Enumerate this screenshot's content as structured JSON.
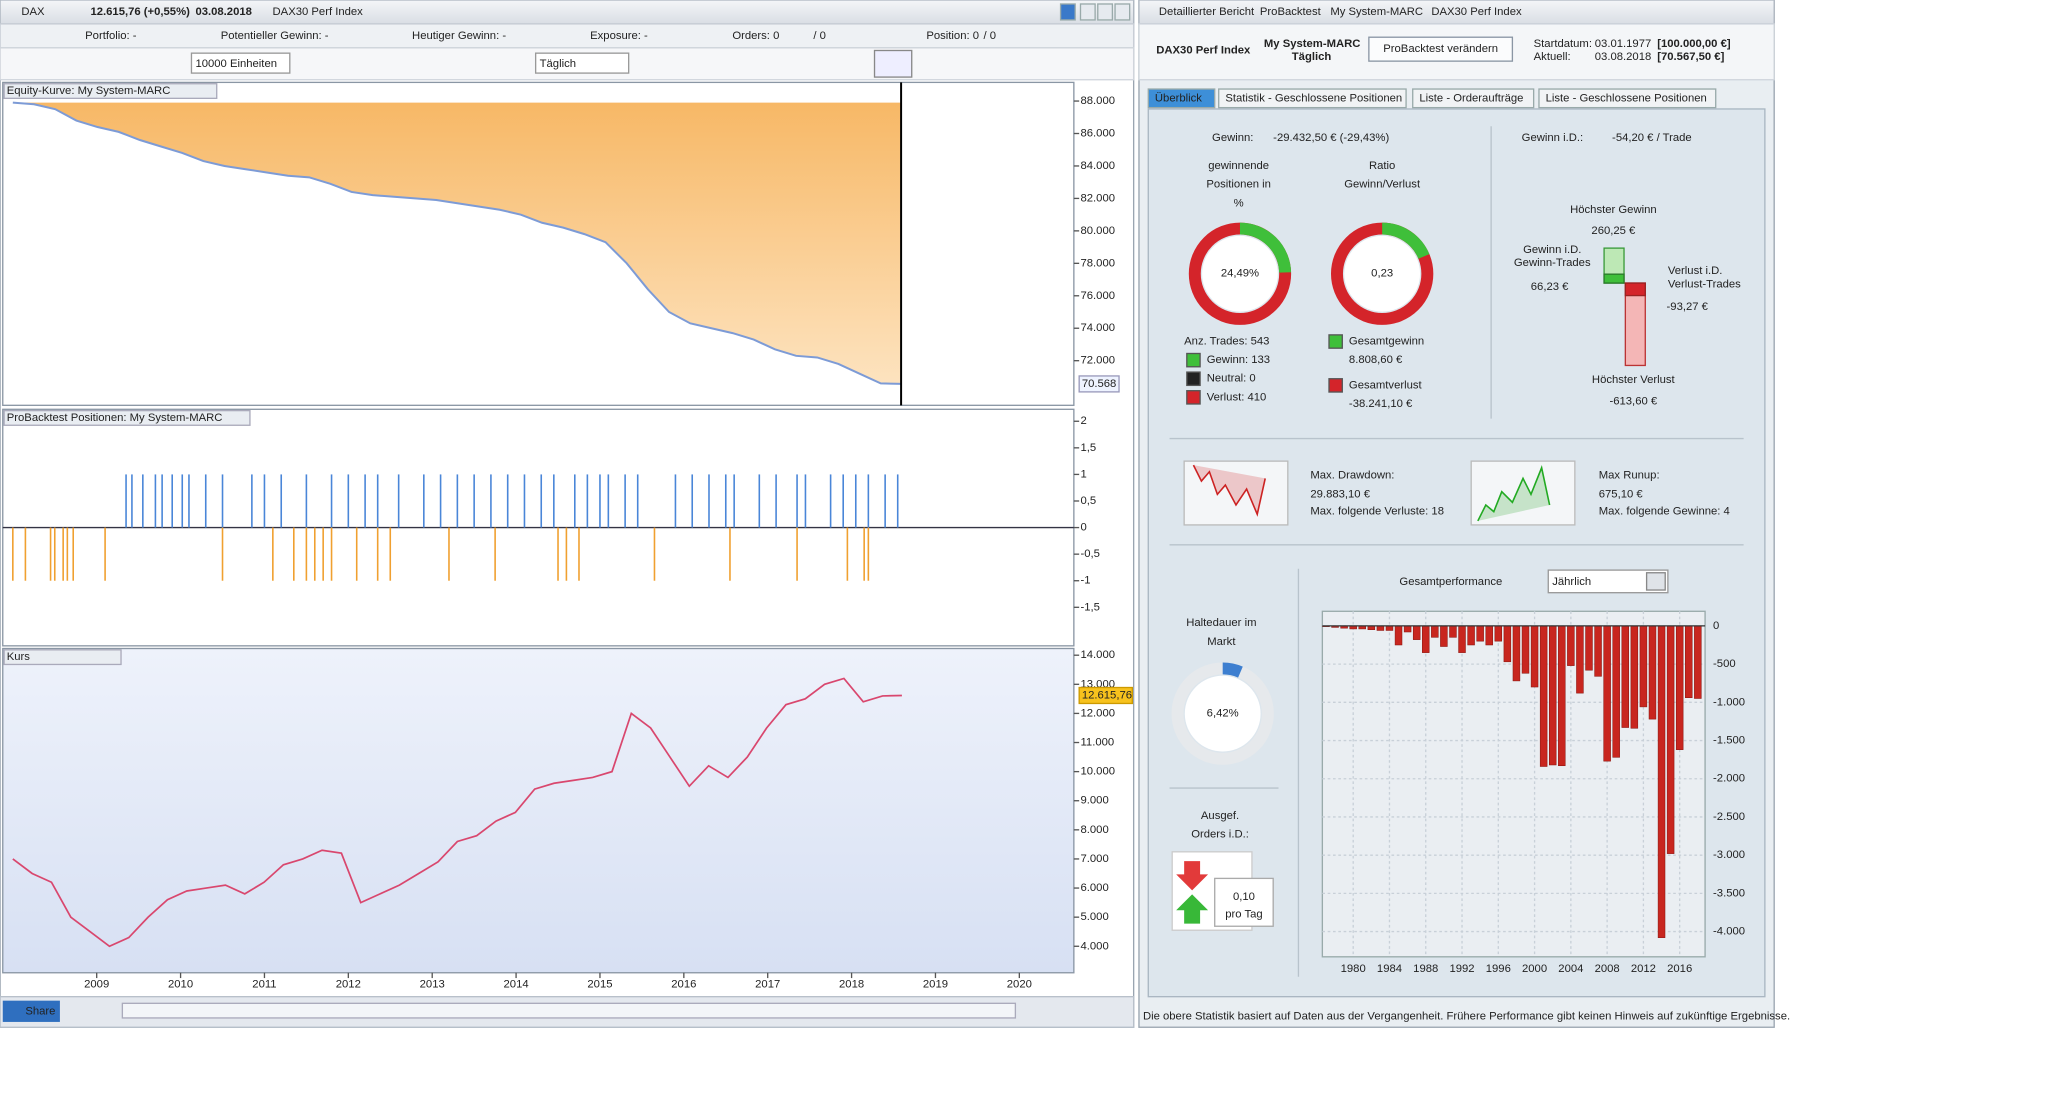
{
  "left": {
    "symbol": "DAX",
    "quote": "12.615,76 (+0,55%)",
    "date": "03.08.2018",
    "instrument": "DAX30 Perf Index",
    "toolbar": [
      "Portfolio: -",
      "Potentieller Gewinn: -",
      "Heutiger Gewinn: -",
      "Exposure: -",
      "Orders: 0",
      "/ 0",
      "Position: 0",
      "/ 0"
    ],
    "size_select": "10000 Einheiten",
    "period_select": "Täglich",
    "xlim": [
      2007.88,
      2020.65
    ],
    "xticks": [
      2009,
      2010,
      2011,
      2012,
      2013,
      2014,
      2015,
      2016,
      2017,
      2018,
      2019,
      2020
    ],
    "equity": {
      "title": "Equity-Kurve: My System-MARC",
      "ylim": [
        69250,
        89150
      ],
      "yticks": [
        {
          "value": 88000,
          "label": "88.000"
        },
        {
          "value": 86000,
          "label": "86.000"
        },
        {
          "value": 84000,
          "label": "84.000"
        },
        {
          "value": 82000,
          "label": "82.000"
        },
        {
          "value": 80000,
          "label": "80.000"
        },
        {
          "value": 78000,
          "label": "78.000"
        },
        {
          "value": 76000,
          "label": "76.000"
        },
        {
          "value": 74000,
          "label": "74.000"
        },
        {
          "value": 72000,
          "label": "72.000"
        }
      ],
      "values": [
        87900,
        87800,
        87500,
        86800,
        86400,
        86100,
        85600,
        85200,
        84800,
        84300,
        84000,
        83800,
        83600,
        83400,
        83300,
        82900,
        82400,
        82200,
        82100,
        82000,
        81900,
        81700,
        81500,
        81300,
        81000,
        80500,
        80200,
        79800,
        79300,
        78000,
        76400,
        75000,
        74300,
        74000,
        73700,
        73300,
        72700,
        72300,
        72200,
        71800,
        71200,
        70600,
        70568
      ],
      "last": {
        "value": 70568,
        "label": "70.568"
      }
    },
    "positions": {
      "title": "ProBacktest Positionen: My System-MARC",
      "ylim": [
        -2.225,
        2.225
      ],
      "yticks": [
        2,
        {
          "value": 1.5,
          "label": "1,5"
        },
        1,
        {
          "value": 0.5,
          "label": "0,5"
        },
        0,
        {
          "value": -0.5,
          "label": "-0,5"
        },
        -1,
        {
          "value": -1.5,
          "label": "-1,5"
        }
      ],
      "long": 1,
      "short": -1,
      "long_x": [
        2009.35,
        2009.42,
        2009.55,
        2009.7,
        2009.78,
        2009.9,
        2010.02,
        2010.1,
        2010.3,
        2010.5,
        2010.85,
        2011.0,
        2011.2,
        2011.5,
        2011.8,
        2012.0,
        2012.2,
        2012.35,
        2012.6,
        2012.9,
        2013.1,
        2013.3,
        2013.5,
        2013.7,
        2013.9,
        2014.1,
        2014.3,
        2014.45,
        2014.7,
        2014.85,
        2015.0,
        2015.1,
        2015.3,
        2015.45,
        2015.9,
        2016.1,
        2016.3,
        2016.5,
        2016.6,
        2016.9,
        2017.1,
        2017.35,
        2017.45,
        2017.75,
        2017.9,
        2018.05,
        2018.2,
        2018.4,
        2018.55
      ],
      "short_x": [
        2008.0,
        2008.15,
        2008.45,
        2008.5,
        2008.6,
        2008.65,
        2008.72,
        2009.1,
        2010.5,
        2011.1,
        2011.35,
        2011.5,
        2011.6,
        2011.7,
        2011.8,
        2012.1,
        2012.35,
        2012.5,
        2013.2,
        2013.75,
        2014.5,
        2014.6,
        2014.75,
        2015.65,
        2016.55,
        2017.35,
        2017.95,
        2018.15,
        2018.2
      ]
    },
    "price": {
      "title": "Kurs",
      "ylim": [
        3090,
        14230
      ],
      "yticks": [
        {
          "value": 14000,
          "label": "14.000"
        },
        {
          "value": 13000,
          "label": "13.000"
        },
        {
          "value": 12000,
          "label": "12.000"
        },
        {
          "value": 11000,
          "label": "11.000"
        },
        {
          "value": 10000,
          "label": "10.000"
        },
        {
          "value": 9000,
          "label": "9.000"
        },
        {
          "value": 8000,
          "label": "8.000"
        },
        {
          "value": 7000,
          "label": "7.000"
        },
        {
          "value": 6000,
          "label": "6.000"
        },
        {
          "value": 5000,
          "label": "5.000"
        },
        {
          "value": 4000,
          "label": "4.000"
        }
      ],
      "values": [
        7000,
        6500,
        6200,
        5000,
        4500,
        4000,
        4300,
        5000,
        5600,
        5900,
        6000,
        6100,
        5800,
        6200,
        6800,
        7000,
        7300,
        7200,
        5500,
        5800,
        6100,
        6500,
        6900,
        7600,
        7800,
        8300,
        8600,
        9400,
        9600,
        9700,
        9800,
        10000,
        12000,
        11500,
        10500,
        9500,
        10200,
        9800,
        10500,
        11500,
        12300,
        12500,
        13000,
        13200,
        12400,
        12600,
        12615.76
      ],
      "last": {
        "value": 12615.76,
        "label": "12.615,76"
      }
    },
    "share": "Share"
  },
  "right": {
    "tabs": [
      "Detaillierter Bericht",
      "ProBacktest",
      "My System-MARC",
      "DAX30 Perf Index"
    ],
    "instrument": "DAX30 Perf Index",
    "system": "My System-MARC",
    "period": "Täglich",
    "button": "ProBacktest verändern",
    "start_label": "Startdatum:",
    "start_date": "03.01.1977",
    "start_capital": "[100.000,00 €]",
    "current_label": "Aktuell:",
    "current_date": "03.08.2018",
    "current_capital": "[70.567,50 €]",
    "sections": [
      "Überblick",
      "Statistik - Geschlossene Positionen",
      "Liste - Orderaufträge",
      "Liste - Geschlossene Positionen"
    ],
    "gain_label": "Gewinn:",
    "gain": "-29.432,50 € (-29,43%)",
    "avg_label": "Gewinn i.D.:",
    "avg": "-54,20 € / Trade",
    "winners": {
      "title": [
        "gewinnende",
        "Positionen in",
        "%"
      ],
      "value": 24.49,
      "label": "24,49%"
    },
    "ratio": {
      "title": [
        "Ratio",
        "Gewinn/Verlust"
      ],
      "value": 0.23,
      "label": "0,23"
    },
    "trades": "Anz. Trades: 543",
    "won": "Gewinn: 133",
    "neutral": "Neutral: 0",
    "lost": "Verlust: 410",
    "total_gain_label": "Gesamtgewinn",
    "total_gain": "8.808,60 €",
    "total_loss_label": "Gesamtverlust",
    "total_loss": "-38.241,10 €",
    "best_label": "Höchster Gewinn",
    "best": {
      "value": 260.25,
      "label": "260,25 €"
    },
    "avg_win_label": [
      "Gewinn i.D.",
      "Gewinn-Trades"
    ],
    "avg_win": {
      "value": 66.23,
      "label": "66,23 €"
    },
    "avg_loss_label": [
      "Verlust i.D.",
      "Verlust-Trades"
    ],
    "avg_loss": {
      "value": -93.27,
      "label": "-93,27 €"
    },
    "worst_label": "Höchster Verlust",
    "worst": {
      "value": -613.6,
      "label": "-613,60 €"
    },
    "drawdown_label": "Max. Drawdown:",
    "drawdown": "29.883,10 €",
    "drawdown_note": "Max. folgende Verluste: 18",
    "runup_label": "Max Runup:",
    "runup": "675,10 €",
    "runup_note": "Max. folgende Gewinne: 4",
    "hold_title": [
      "Haltedauer im",
      "Markt"
    ],
    "hold": {
      "value": 6.42,
      "label": "6,42%"
    },
    "orders_title": [
      "Ausgef.",
      "Orders i.D.:"
    ],
    "orders": "0,10",
    "orders_unit": "pro Tag",
    "perf": {
      "title": "Gesamtperformance",
      "select": "Jährlich",
      "xlim": [
        1976.6,
        2018.8
      ],
      "ylim": [
        -4330,
        191
      ],
      "xticks": [
        1980,
        1984,
        1988,
        1992,
        1996,
        2000,
        2004,
        2008,
        2012,
        2016
      ],
      "yticks": [
        0,
        -500,
        {
          "value": -1000,
          "label": "-1.000"
        },
        {
          "value": -1500,
          "label": "-1.500"
        },
        {
          "value": -2000,
          "label": "-2.000"
        },
        {
          "value": -2500,
          "label": "-2.500"
        },
        {
          "value": -3000,
          "label": "-3.000"
        },
        {
          "value": -3500,
          "label": "-3.500"
        },
        {
          "value": -4000,
          "label": "-4.000"
        }
      ],
      "x": [
        1977,
        1978,
        1979,
        1980,
        1981,
        1982,
        1983,
        1984,
        1985,
        1986,
        1987,
        1988,
        1989,
        1990,
        1991,
        1992,
        1993,
        1994,
        1995,
        1996,
        1997,
        1998,
        1999,
        2000,
        2001,
        2002,
        2003,
        2004,
        2005,
        2006,
        2007,
        2008,
        2009,
        2010,
        2011,
        2012,
        2013,
        2014,
        2015,
        2016,
        2017,
        2018
      ],
      "values": [
        -10,
        -20,
        -30,
        -40,
        -40,
        -50,
        -60,
        -60,
        -250,
        -80,
        -180,
        -350,
        -150,
        -270,
        -150,
        -350,
        -250,
        -200,
        -250,
        -200,
        -470,
        -720,
        -620,
        -800,
        -1840,
        -1820,
        -1830,
        -520,
        -880,
        -580,
        -660,
        -1770,
        -1720,
        -1330,
        -1340,
        -1060,
        -1220,
        -4080,
        -2980,
        -1620,
        -940,
        -950
      ]
    },
    "footer": "Die obere Statistik basiert auf Daten aus der Vergangenheit. Frühere Performance gibt keinen Hinweis auf zukünftige Ergebnisse."
  }
}
